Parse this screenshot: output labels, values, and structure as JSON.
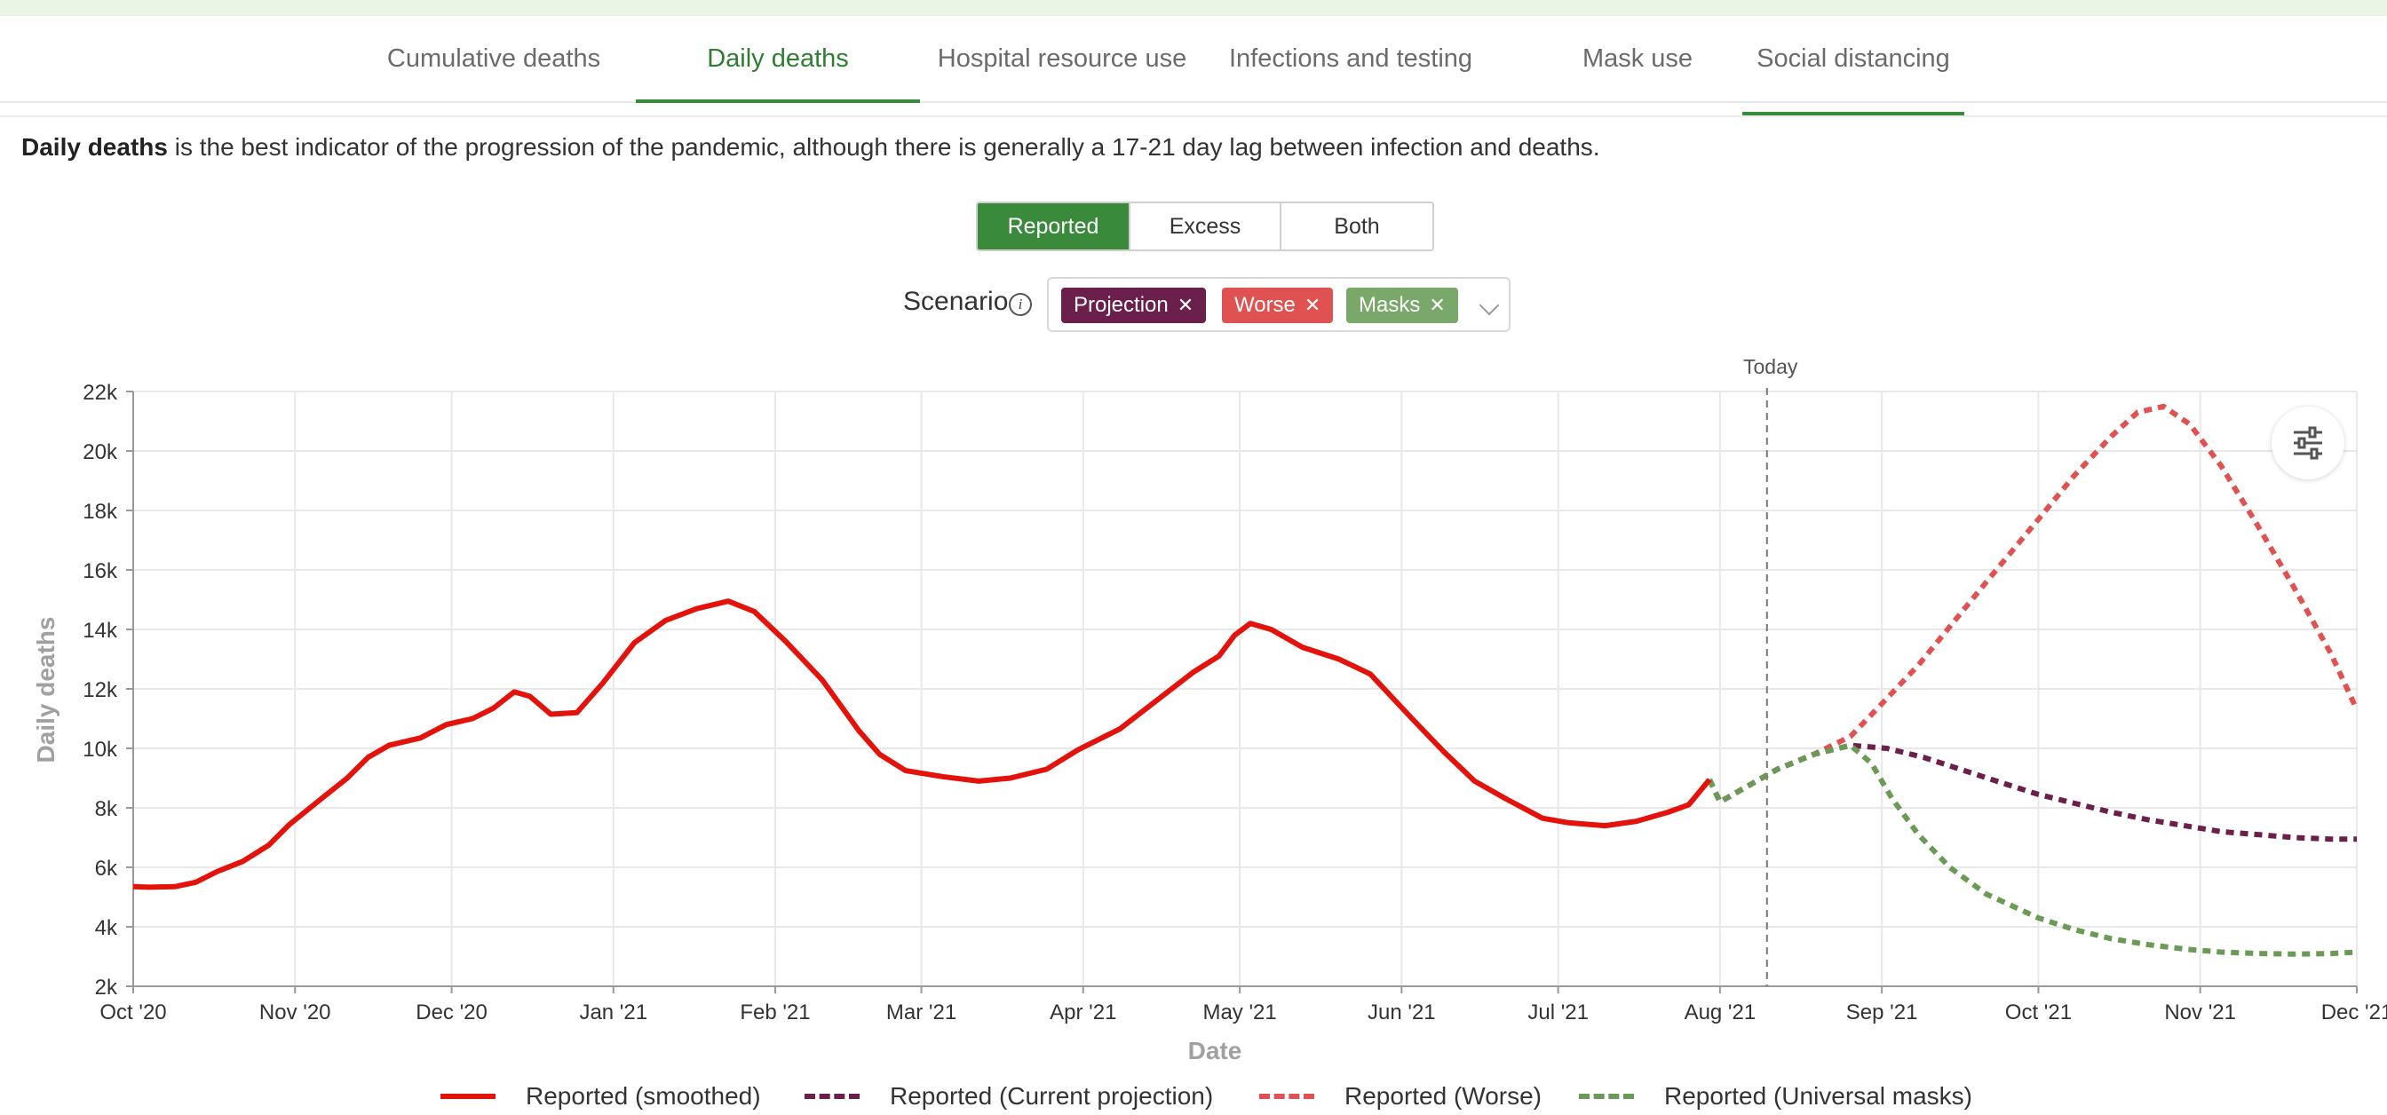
{
  "tabs": [
    {
      "label": "Cumulative deaths"
    },
    {
      "label": "Daily deaths"
    },
    {
      "label": "Hospital resource use"
    },
    {
      "label": "Infections and testing"
    },
    {
      "label": "Mask use"
    },
    {
      "label": "Social distancing"
    }
  ],
  "intro": {
    "bold": "Daily deaths",
    "text": " is the best indicator of the progression of the pandemic, although there is generally a 17-21 day lag between infection and deaths."
  },
  "toggle": {
    "options": [
      "Reported",
      "Excess",
      "Both"
    ],
    "selected": "Reported"
  },
  "scenario": {
    "label": "Scenario",
    "info_icon": "info-circle-icon",
    "chips": [
      {
        "label": "Projection",
        "color": "#6b1f4b"
      },
      {
        "label": "Worse",
        "color": "#e05252"
      },
      {
        "label": "Masks",
        "color": "#7aa86a"
      }
    ],
    "remove_icon": "close-icon",
    "dropdown_icon": "chevron-down-icon"
  },
  "settings_icon": "sliders-icon",
  "chart_data": {
    "type": "line",
    "ylabel": "Daily deaths",
    "xlabel": "Date",
    "today_label": "Today",
    "today_date": "2021-08-10",
    "x_range": [
      "2020-10-01",
      "2021-12-01"
    ],
    "ylim": [
      2000,
      22000
    ],
    "grid": true,
    "legend_position": "bottom",
    "y_ticks": [
      {
        "v": 2000,
        "label": "2k"
      },
      {
        "v": 4000,
        "label": "4k"
      },
      {
        "v": 6000,
        "label": "6k"
      },
      {
        "v": 8000,
        "label": "8k"
      },
      {
        "v": 10000,
        "label": "10k"
      },
      {
        "v": 12000,
        "label": "12k"
      },
      {
        "v": 14000,
        "label": "14k"
      },
      {
        "v": 16000,
        "label": "16k"
      },
      {
        "v": 18000,
        "label": "18k"
      },
      {
        "v": 20000,
        "label": "20k"
      },
      {
        "v": 22000,
        "label": "22k"
      }
    ],
    "x_ticks": [
      {
        "date": "2020-10-01",
        "label": "Oct '20"
      },
      {
        "date": "2020-11-01",
        "label": "Nov '20"
      },
      {
        "date": "2020-12-01",
        "label": "Dec '20"
      },
      {
        "date": "2021-01-01",
        "label": "Jan '21"
      },
      {
        "date": "2021-02-01",
        "label": "Feb '21"
      },
      {
        "date": "2021-03-01",
        "label": "Mar '21"
      },
      {
        "date": "2021-04-01",
        "label": "Apr '21"
      },
      {
        "date": "2021-05-01",
        "label": "May '21"
      },
      {
        "date": "2021-06-01",
        "label": "Jun '21"
      },
      {
        "date": "2021-07-01",
        "label": "Jul '21"
      },
      {
        "date": "2021-08-01",
        "label": "Aug '21"
      },
      {
        "date": "2021-09-01",
        "label": "Sep '21"
      },
      {
        "date": "2021-10-01",
        "label": "Oct '21"
      },
      {
        "date": "2021-11-01",
        "label": "Nov '21"
      },
      {
        "date": "2021-12-01",
        "label": "Dec '21"
      }
    ],
    "series": [
      {
        "name": "Reported (smoothed)",
        "color": "#e3120b",
        "style": "solid",
        "points": [
          [
            "2020-10-01",
            5350
          ],
          [
            "2020-10-04",
            5330
          ],
          [
            "2020-10-09",
            5350
          ],
          [
            "2020-10-13",
            5500
          ],
          [
            "2020-10-17",
            5850
          ],
          [
            "2020-10-22",
            6200
          ],
          [
            "2020-10-27",
            6750
          ],
          [
            "2020-10-31",
            7450
          ],
          [
            "2020-11-06",
            8300
          ],
          [
            "2020-11-11",
            9000
          ],
          [
            "2020-11-15",
            9700
          ],
          [
            "2020-11-19",
            10100
          ],
          [
            "2020-11-25",
            10350
          ],
          [
            "2020-11-30",
            10800
          ],
          [
            "2020-12-05",
            11000
          ],
          [
            "2020-12-09",
            11350
          ],
          [
            "2020-12-13",
            11900
          ],
          [
            "2020-12-16",
            11750
          ],
          [
            "2020-12-20",
            11150
          ],
          [
            "2020-12-25",
            11200
          ],
          [
            "2020-12-30",
            12200
          ],
          [
            "2021-01-05",
            13550
          ],
          [
            "2021-01-11",
            14300
          ],
          [
            "2021-01-17",
            14700
          ],
          [
            "2021-01-23",
            14950
          ],
          [
            "2021-01-28",
            14600
          ],
          [
            "2021-02-03",
            13600
          ],
          [
            "2021-02-10",
            12300
          ],
          [
            "2021-02-17",
            10600
          ],
          [
            "2021-02-21",
            9800
          ],
          [
            "2021-02-26",
            9250
          ],
          [
            "2021-03-05",
            9050
          ],
          [
            "2021-03-12",
            8900
          ],
          [
            "2021-03-18",
            9000
          ],
          [
            "2021-03-25",
            9300
          ],
          [
            "2021-03-31",
            9950
          ],
          [
            "2021-04-08",
            10650
          ],
          [
            "2021-04-15",
            11600
          ],
          [
            "2021-04-22",
            12550
          ],
          [
            "2021-04-27",
            13100
          ],
          [
            "2021-04-30",
            13800
          ],
          [
            "2021-05-03",
            14200
          ],
          [
            "2021-05-07",
            14000
          ],
          [
            "2021-05-13",
            13400
          ],
          [
            "2021-05-20",
            13000
          ],
          [
            "2021-05-26",
            12500
          ],
          [
            "2021-06-03",
            11000
          ],
          [
            "2021-06-09",
            9900
          ],
          [
            "2021-06-15",
            8900
          ],
          [
            "2021-06-21",
            8300
          ],
          [
            "2021-06-28",
            7650
          ],
          [
            "2021-07-03",
            7500
          ],
          [
            "2021-07-10",
            7400
          ],
          [
            "2021-07-16",
            7550
          ],
          [
            "2021-07-22",
            7850
          ],
          [
            "2021-07-26",
            8100
          ],
          [
            "2021-07-30",
            8950
          ]
        ]
      },
      {
        "name": "Reported (Current projection)",
        "color": "#6b1f4b",
        "style": "dashed",
        "points": [
          [
            "2021-07-30",
            8950
          ],
          [
            "2021-08-01",
            8200
          ],
          [
            "2021-08-06",
            8700
          ],
          [
            "2021-08-12",
            9300
          ],
          [
            "2021-08-19",
            9800
          ],
          [
            "2021-08-26",
            10100
          ],
          [
            "2021-09-02",
            10000
          ],
          [
            "2021-09-09",
            9700
          ],
          [
            "2021-09-16",
            9300
          ],
          [
            "2021-09-23",
            8900
          ],
          [
            "2021-10-01",
            8450
          ],
          [
            "2021-10-08",
            8150
          ],
          [
            "2021-10-15",
            7850
          ],
          [
            "2021-10-22",
            7600
          ],
          [
            "2021-10-29",
            7400
          ],
          [
            "2021-11-05",
            7200
          ],
          [
            "2021-11-12",
            7100
          ],
          [
            "2021-11-19",
            7000
          ],
          [
            "2021-11-26",
            6950
          ],
          [
            "2021-12-01",
            6950
          ]
        ]
      },
      {
        "name": "Reported (Worse)",
        "color": "#e05252",
        "style": "dashed",
        "points": [
          [
            "2021-07-30",
            8950
          ],
          [
            "2021-08-01",
            8200
          ],
          [
            "2021-08-06",
            8700
          ],
          [
            "2021-08-12",
            9300
          ],
          [
            "2021-08-19",
            9800
          ],
          [
            "2021-08-26",
            10400
          ],
          [
            "2021-09-01",
            11500
          ],
          [
            "2021-09-08",
            12800
          ],
          [
            "2021-09-15",
            14300
          ],
          [
            "2021-09-22",
            15800
          ],
          [
            "2021-10-01",
            17700
          ],
          [
            "2021-10-08",
            19200
          ],
          [
            "2021-10-15",
            20500
          ],
          [
            "2021-10-20",
            21300
          ],
          [
            "2021-10-25",
            21500
          ],
          [
            "2021-10-30",
            20900
          ],
          [
            "2021-11-05",
            19500
          ],
          [
            "2021-11-12",
            17500
          ],
          [
            "2021-11-19",
            15400
          ],
          [
            "2021-11-26",
            13200
          ],
          [
            "2021-12-01",
            11300
          ]
        ]
      },
      {
        "name": "Reported (Universal masks)",
        "color": "#6a9a55",
        "style": "dashed",
        "points": [
          [
            "2021-07-30",
            8950
          ],
          [
            "2021-08-01",
            8200
          ],
          [
            "2021-08-06",
            8700
          ],
          [
            "2021-08-12",
            9300
          ],
          [
            "2021-08-19",
            9800
          ],
          [
            "2021-08-26",
            10100
          ],
          [
            "2021-08-30",
            9500
          ],
          [
            "2021-09-03",
            8300
          ],
          [
            "2021-09-08",
            7100
          ],
          [
            "2021-09-14",
            6000
          ],
          [
            "2021-09-21",
            5100
          ],
          [
            "2021-10-01",
            4300
          ],
          [
            "2021-10-08",
            3900
          ],
          [
            "2021-10-15",
            3600
          ],
          [
            "2021-10-22",
            3400
          ],
          [
            "2021-10-29",
            3250
          ],
          [
            "2021-11-05",
            3150
          ],
          [
            "2021-11-12",
            3100
          ],
          [
            "2021-11-19",
            3080
          ],
          [
            "2021-11-26",
            3100
          ],
          [
            "2021-12-01",
            3150
          ]
        ]
      }
    ]
  }
}
